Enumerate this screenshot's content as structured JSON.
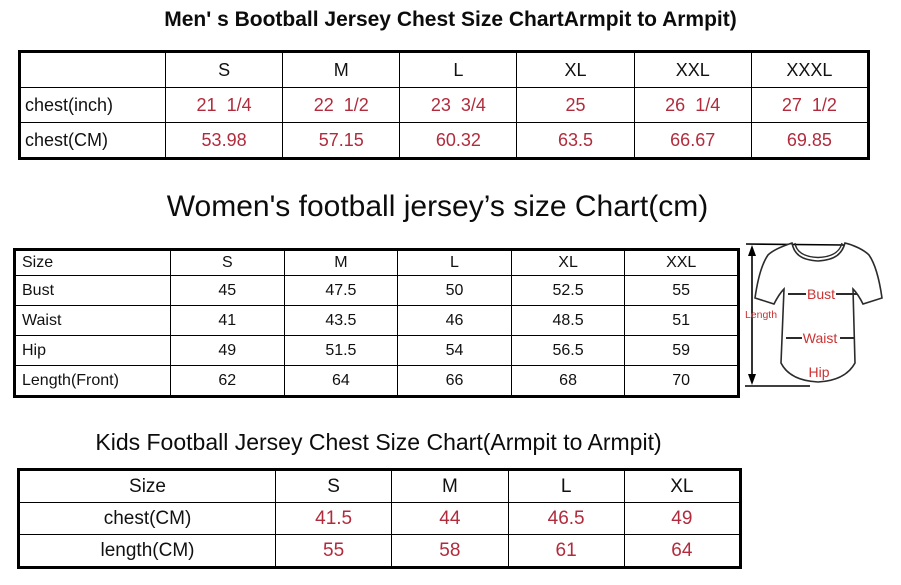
{
  "colors": {
    "table_value_red": "#b12b3c",
    "diagram_label_red": "#cb3333",
    "text_black": "#0c0c0c",
    "border_black": "#000000"
  },
  "mens": {
    "title": "Men' s Bootball Jersey Chest Size ChartArmpit to Armpit)",
    "columns": [
      "",
      "S",
      "M",
      "L",
      "XL",
      "XXL",
      "XXXL"
    ],
    "rows": [
      {
        "label": "chest(inch)",
        "values": [
          "21  1/4",
          "22  1/2",
          "23  3/4",
          "25",
          "26  1/4",
          "27  1/2"
        ]
      },
      {
        "label": "chest(CM)",
        "values": [
          "53.98",
          "57.15",
          "60.32",
          "63.5",
          "66.67",
          "69.85"
        ]
      }
    ]
  },
  "womens": {
    "title": "Women's football jersey’s size Chart(cm)",
    "columns": [
      "Size",
      "S",
      "M",
      "L",
      "XL",
      "XXL"
    ],
    "rows": [
      {
        "label": "Bust",
        "values": [
          "45",
          "47.5",
          "50",
          "52.5",
          "55"
        ]
      },
      {
        "label": "Waist",
        "values": [
          "41",
          "43.5",
          "46",
          "48.5",
          "51"
        ]
      },
      {
        "label": "Hip",
        "values": [
          "49",
          "51.5",
          "54",
          "56.5",
          "59"
        ]
      },
      {
        "label": "Length(Front)",
        "values": [
          "62",
          "64",
          "66",
          "68",
          "70"
        ]
      }
    ],
    "diagram": {
      "length_label": "Length",
      "bust_label": "Bust",
      "waist_label": "Waist",
      "hip_label": "Hip"
    }
  },
  "kids": {
    "title": "Kids Football Jersey Chest Size Chart(Armpit to Armpit)",
    "columns": [
      "Size",
      "S",
      "M",
      "L",
      "XL"
    ],
    "rows": [
      {
        "label": "chest(CM)",
        "values": [
          "41.5",
          "44",
          "46.5",
          "49"
        ]
      },
      {
        "label": "length(CM)",
        "values": [
          "55",
          "58",
          "61",
          "64"
        ]
      }
    ]
  }
}
